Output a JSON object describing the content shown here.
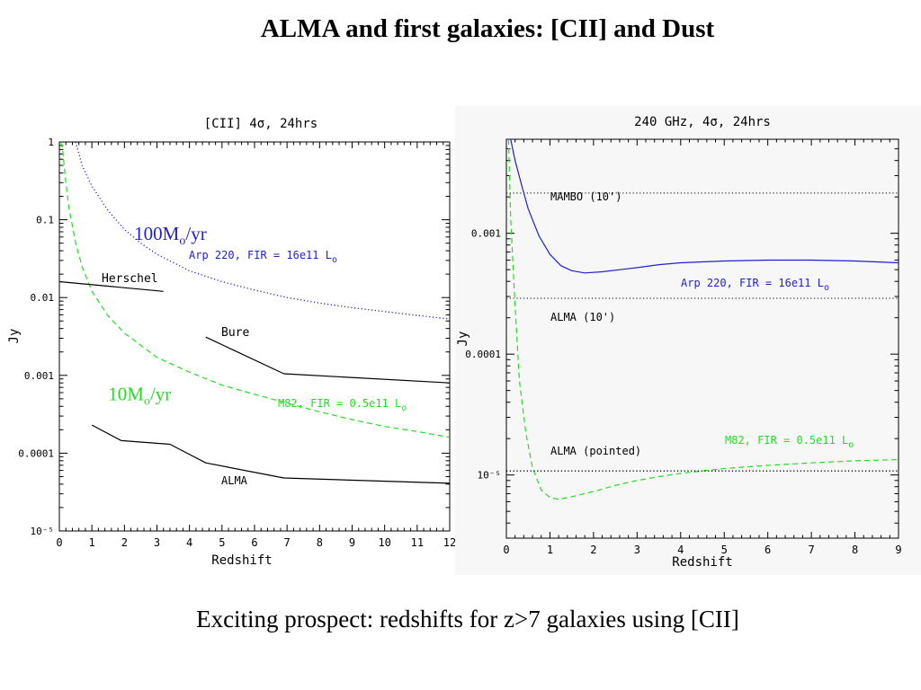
{
  "slide": {
    "title": "ALMA and first galaxies: [CII] and Dust",
    "caption": "Exciting prospect: redshifts for z>7 galaxies using [CII]"
  },
  "chart_data": [
    {
      "type": "line",
      "title": "[CII] 4σ, 24hrs",
      "xlabel": "Redshift",
      "ylabel": "Jy",
      "xlim": [
        0,
        12
      ],
      "ylim": [
        1e-05,
        1
      ],
      "yscale": "log",
      "x_ticks": [
        0,
        1,
        2,
        3,
        4,
        5,
        6,
        7,
        8,
        9,
        10,
        11,
        12
      ],
      "x_tick_labels": [
        "0",
        "1",
        "2",
        "3",
        "4",
        "5",
        "6",
        "7",
        "8",
        "9",
        "10",
        "11",
        "12"
      ],
      "y_ticks": [
        1,
        0.1,
        0.01,
        0.001,
        0.0001,
        1e-05
      ],
      "y_tick_labels": [
        "1",
        "0.1",
        "0.01",
        "0.001",
        "0.0001",
        "10⁻⁵"
      ],
      "grid": false,
      "series": [
        {
          "name": "Arp 220, FIR = 16e11 L⊙",
          "color": "#1f1fd0",
          "dash": "dotted",
          "x": [
            0.5,
            0.7,
            1,
            1.5,
            2,
            2.5,
            3,
            4,
            5,
            6,
            7,
            8,
            9,
            10,
            11,
            12
          ],
          "y": [
            1.0,
            0.5,
            0.27,
            0.13,
            0.075,
            0.05,
            0.036,
            0.022,
            0.016,
            0.0125,
            0.01,
            0.0085,
            0.0074,
            0.0066,
            0.0059,
            0.0053
          ]
        },
        {
          "name": "M82, FIR = 0.5e11 L⊙",
          "color": "#22dd22",
          "dash": "dashed",
          "x": [
            0.05,
            0.1,
            0.2,
            0.3,
            0.5,
            0.7,
            1,
            1.5,
            2,
            3,
            4,
            5,
            6,
            7,
            8,
            9,
            10,
            11,
            12
          ],
          "y": [
            1.0,
            0.8,
            0.3,
            0.14,
            0.05,
            0.025,
            0.012,
            0.0058,
            0.0035,
            0.0017,
            0.0011,
            0.00075,
            0.00057,
            0.00044,
            0.00034,
            0.00027,
            0.00022,
            0.00019,
            0.00016
          ]
        },
        {
          "name": "Herschel",
          "color": "#000000",
          "dash": "solid",
          "x": [
            0,
            3.2
          ],
          "y": [
            0.016,
            0.012
          ]
        },
        {
          "name": "Bure",
          "color": "#000000",
          "dash": "solid",
          "x": [
            4.5,
            6.9,
            12
          ],
          "y": [
            0.0031,
            0.00105,
            0.0008
          ]
        },
        {
          "name": "ALMA",
          "color": "#000000",
          "dash": "solid",
          "x": [
            1,
            1.9,
            3.4,
            4.5,
            6.9,
            12
          ],
          "y": [
            0.00023,
            0.000145,
            0.00013,
            7.5e-05,
            4.8e-05,
            4.1e-05
          ]
        }
      ],
      "annotations": [
        {
          "id": "sfr_100",
          "text": "100M",
          "sub": "o",
          "suffix": "/yr",
          "color": "#1f1fd0",
          "x": 2.3,
          "y": 0.055
        },
        {
          "id": "sfr_10",
          "text": "10M",
          "sub": "o",
          "suffix": "/yr",
          "color": "#22dd22",
          "x": 1.5,
          "y": 0.00048
        }
      ]
    },
    {
      "type": "line",
      "title": "240 GHz, 4σ, 24hrs",
      "xlabel": "Redshift",
      "ylabel": "Jy",
      "xlim": [
        0,
        9
      ],
      "ylim": [
        3e-06,
        0.006
      ],
      "yscale": "log",
      "x_ticks": [
        0,
        1,
        2,
        3,
        4,
        5,
        6,
        7,
        8,
        9
      ],
      "x_tick_labels": [
        "0",
        "1",
        "2",
        "3",
        "4",
        "5",
        "6",
        "7",
        "8",
        "9"
      ],
      "y_ticks": [
        0.001,
        0.0001,
        1e-05
      ],
      "y_tick_labels": [
        "0.001",
        "0.0001",
        "10⁻⁵"
      ],
      "grid": false,
      "series": [
        {
          "name": "Arp 220, FIR = 16e11 L⊙",
          "color": "#1f1fd0",
          "dash": "solid",
          "x": [
            0.1,
            0.2,
            0.35,
            0.5,
            0.75,
            1,
            1.25,
            1.5,
            1.8,
            2.2,
            2.6,
            3,
            3.5,
            4,
            5,
            6,
            7,
            8,
            9
          ],
          "y": [
            0.006,
            0.004,
            0.0025,
            0.0016,
            0.00095,
            0.00067,
            0.00054,
            0.00049,
            0.00047,
            0.00048,
            0.0005,
            0.00052,
            0.00055,
            0.00057,
            0.00059,
            0.0006,
            0.0006,
            0.00059,
            0.00057
          ]
        },
        {
          "name": "M82, FIR = 0.5e11 L⊙",
          "color": "#22dd22",
          "dash": "dashed",
          "x": [
            0.05,
            0.1,
            0.2,
            0.3,
            0.45,
            0.6,
            0.8,
            1,
            1.2,
            1.5,
            2,
            2.5,
            3,
            3.5,
            4,
            5,
            6,
            7,
            8,
            9
          ],
          "y": [
            0.006,
            0.0013,
            0.00025,
            6e-05,
            2.2e-05,
            1.15e-05,
            7.5e-06,
            6.5e-06,
            6.3e-06,
            6.6e-06,
            7.3e-06,
            8.2e-06,
            9e-06,
            9.7e-06,
            1.03e-05,
            1.13e-05,
            1.2e-05,
            1.26e-05,
            1.31e-05,
            1.34e-05
          ]
        },
        {
          "name": "MAMBO (10')",
          "color": "#333333",
          "dash": "dotted",
          "x": [
            0,
            9
          ],
          "y": [
            0.00215,
            0.00215
          ]
        },
        {
          "name": "ALMA (10')",
          "color": "#333333",
          "dash": "dotted",
          "x": [
            0,
            9
          ],
          "y": [
            0.00029,
            0.00029
          ]
        },
        {
          "name": "ALMA (pointed)",
          "color": "#000000",
          "dash": "dotted",
          "x": [
            0,
            9
          ],
          "y": [
            1.08e-05,
            1.08e-05
          ]
        }
      ]
    }
  ]
}
